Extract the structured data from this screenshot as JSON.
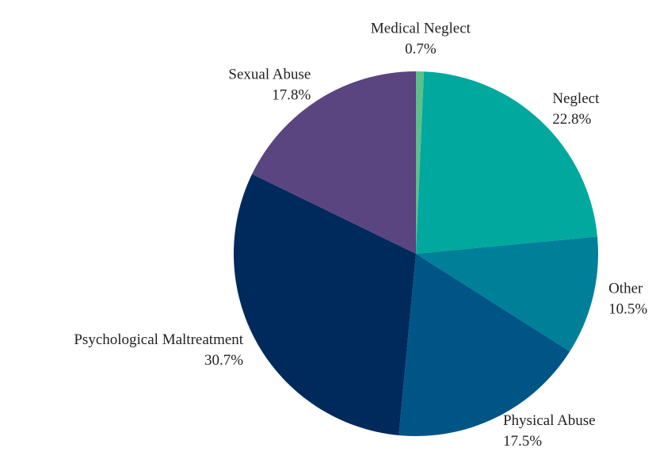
{
  "chart_data": {
    "type": "pie",
    "categories": [
      "Medical Neglect",
      "Neglect",
      "Other",
      "Physical Abuse",
      "Psychological Maltreatment",
      "Sexual Abuse"
    ],
    "values": [
      0.7,
      22.8,
      10.5,
      17.5,
      30.7,
      17.8
    ],
    "value_labels": [
      "0.7%",
      "22.8%",
      "10.5%",
      "17.5%",
      "30.7%",
      "17.8%"
    ],
    "colors": [
      "#5cc08a",
      "#00a89d",
      "#007f99",
      "#005587",
      "#002a5c",
      "#5a4580"
    ]
  }
}
